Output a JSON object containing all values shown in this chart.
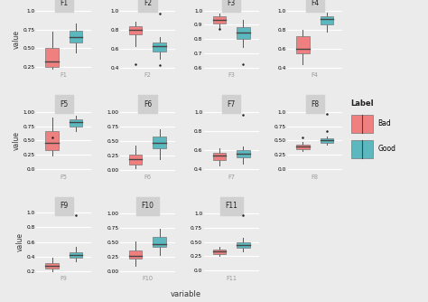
{
  "features": [
    "F1",
    "F2",
    "F3",
    "F4",
    "F5",
    "F6",
    "F7",
    "F8",
    "F9",
    "F10",
    "F11"
  ],
  "bad_color": "#F08080",
  "good_color": "#5BB8BE",
  "bg_color": "#EBEBEB",
  "strip_bg": "#D0D0D0",
  "grid_color": "#FFFFFF",
  "median_color": "#444444",
  "whisker_color": "#555555",
  "title_x": "variable",
  "title_y": "value",
  "legend_title": "Label",
  "legend_bad": "Bad",
  "legend_good": "Good",
  "bad_data": {
    "F1": {
      "q1": 0.25,
      "med": 0.32,
      "q3": 0.5,
      "whisk_lo": 0.22,
      "whisk_hi": 0.72,
      "fliers": []
    },
    "F2": {
      "q1": 0.75,
      "med": 0.8,
      "q3": 0.83,
      "whisk_lo": 0.62,
      "whisk_hi": 0.88,
      "fliers": [
        0.43
      ]
    },
    "F3": {
      "q1": 0.905,
      "med": 0.935,
      "q3": 0.96,
      "whisk_lo": 0.875,
      "whisk_hi": 0.975,
      "fliers": [
        0.87
      ]
    },
    "F4": {
      "q1": 0.55,
      "med": 0.6,
      "q3": 0.73,
      "whisk_lo": 0.43,
      "whisk_hi": 0.8,
      "fliers": []
    },
    "F5": {
      "q1": 0.33,
      "med": 0.46,
      "q3": 0.67,
      "whisk_lo": 0.23,
      "whisk_hi": 0.9,
      "fliers": [
        0.56
      ]
    },
    "F6": {
      "q1": 0.1,
      "med": 0.18,
      "q3": 0.26,
      "whisk_lo": 0.03,
      "whisk_hi": 0.42,
      "fliers": []
    },
    "F7": {
      "q1": 0.49,
      "med": 0.54,
      "q3": 0.57,
      "whisk_lo": 0.44,
      "whisk_hi": 0.62,
      "fliers": []
    },
    "F8": {
      "q1": 0.35,
      "med": 0.39,
      "q3": 0.43,
      "whisk_lo": 0.31,
      "whisk_hi": 0.47,
      "fliers": [
        0.56
      ]
    },
    "F9": {
      "q1": 0.23,
      "med": 0.27,
      "q3": 0.31,
      "whisk_lo": 0.2,
      "whisk_hi": 0.38,
      "fliers": []
    },
    "F10": {
      "q1": 0.22,
      "med": 0.27,
      "q3": 0.36,
      "whisk_lo": 0.1,
      "whisk_hi": 0.52,
      "fliers": []
    },
    "F11": {
      "q1": 0.29,
      "med": 0.33,
      "q3": 0.37,
      "whisk_lo": 0.25,
      "whisk_hi": 0.41,
      "fliers": []
    }
  },
  "good_data": {
    "F1": {
      "q1": 0.57,
      "med": 0.65,
      "q3": 0.74,
      "whisk_lo": 0.44,
      "whisk_hi": 0.83,
      "fliers": []
    },
    "F2": {
      "q1": 0.57,
      "med": 0.62,
      "q3": 0.66,
      "whisk_lo": 0.49,
      "whisk_hi": 0.72,
      "fliers": [
        0.97,
        0.42
      ]
    },
    "F3": {
      "q1": 0.8,
      "med": 0.845,
      "q3": 0.885,
      "whisk_lo": 0.74,
      "whisk_hi": 0.935,
      "fliers": [
        0.62
      ]
    },
    "F4": {
      "q1": 0.855,
      "med": 0.905,
      "q3": 0.935,
      "whisk_lo": 0.78,
      "whisk_hi": 0.975,
      "fliers": []
    },
    "F5": {
      "q1": 0.75,
      "med": 0.82,
      "q3": 0.875,
      "whisk_lo": 0.67,
      "whisk_hi": 0.935,
      "fliers": []
    },
    "F6": {
      "q1": 0.38,
      "med": 0.47,
      "q3": 0.57,
      "whisk_lo": 0.18,
      "whisk_hi": 0.7,
      "fliers": []
    },
    "F7": {
      "q1": 0.52,
      "med": 0.56,
      "q3": 0.6,
      "whisk_lo": 0.46,
      "whisk_hi": 0.64,
      "fliers": [
        0.97
      ]
    },
    "F8": {
      "q1": 0.46,
      "med": 0.5,
      "q3": 0.535,
      "whisk_lo": 0.42,
      "whisk_hi": 0.575,
      "fliers": [
        0.97,
        0.66
      ]
    },
    "F9": {
      "q1": 0.38,
      "med": 0.42,
      "q3": 0.46,
      "whisk_lo": 0.33,
      "whisk_hi": 0.53,
      "fliers": [
        0.97
      ]
    },
    "F10": {
      "q1": 0.42,
      "med": 0.48,
      "q3": 0.59,
      "whisk_lo": 0.29,
      "whisk_hi": 0.74,
      "fliers": []
    },
    "F11": {
      "q1": 0.4,
      "med": 0.445,
      "q3": 0.5,
      "whisk_lo": 0.34,
      "whisk_hi": 0.57,
      "fliers": [
        0.97
      ]
    }
  },
  "yticks": {
    "F1": [
      0.25,
      0.5,
      0.75,
      1.0
    ],
    "F2": [
      0.4,
      0.6,
      0.8,
      1.0
    ],
    "F3": [
      0.6,
      0.7,
      0.8,
      0.9,
      1.0
    ],
    "F4": [
      0.4,
      0.6,
      0.8,
      1.0
    ],
    "F5": [
      0.0,
      0.25,
      0.5,
      0.75,
      1.0
    ],
    "F6": [
      0.0,
      0.25,
      0.5,
      0.75,
      1.0
    ],
    "F7": [
      0.4,
      0.6,
      0.8,
      1.0
    ],
    "F8": [
      0.0,
      0.25,
      0.5,
      0.75,
      1.0
    ],
    "F9": [
      0.2,
      0.4,
      0.6,
      0.8,
      1.0
    ],
    "F10": [
      0.0,
      0.25,
      0.5,
      0.75,
      1.0
    ],
    "F11": [
      0.0,
      0.25,
      0.5,
      0.75,
      1.0
    ]
  },
  "ylims": {
    "F1": [
      0.2,
      1.05
    ],
    "F2": [
      0.37,
      1.03
    ],
    "F3": [
      0.58,
      1.02
    ],
    "F4": [
      0.37,
      1.03
    ],
    "F5": [
      -0.05,
      1.05
    ],
    "F6": [
      -0.03,
      1.05
    ],
    "F7": [
      0.37,
      1.03
    ],
    "F8": [
      -0.05,
      1.05
    ],
    "F9": [
      0.17,
      1.03
    ],
    "F10": [
      -0.03,
      1.05
    ],
    "F11": [
      -0.05,
      1.05
    ]
  }
}
